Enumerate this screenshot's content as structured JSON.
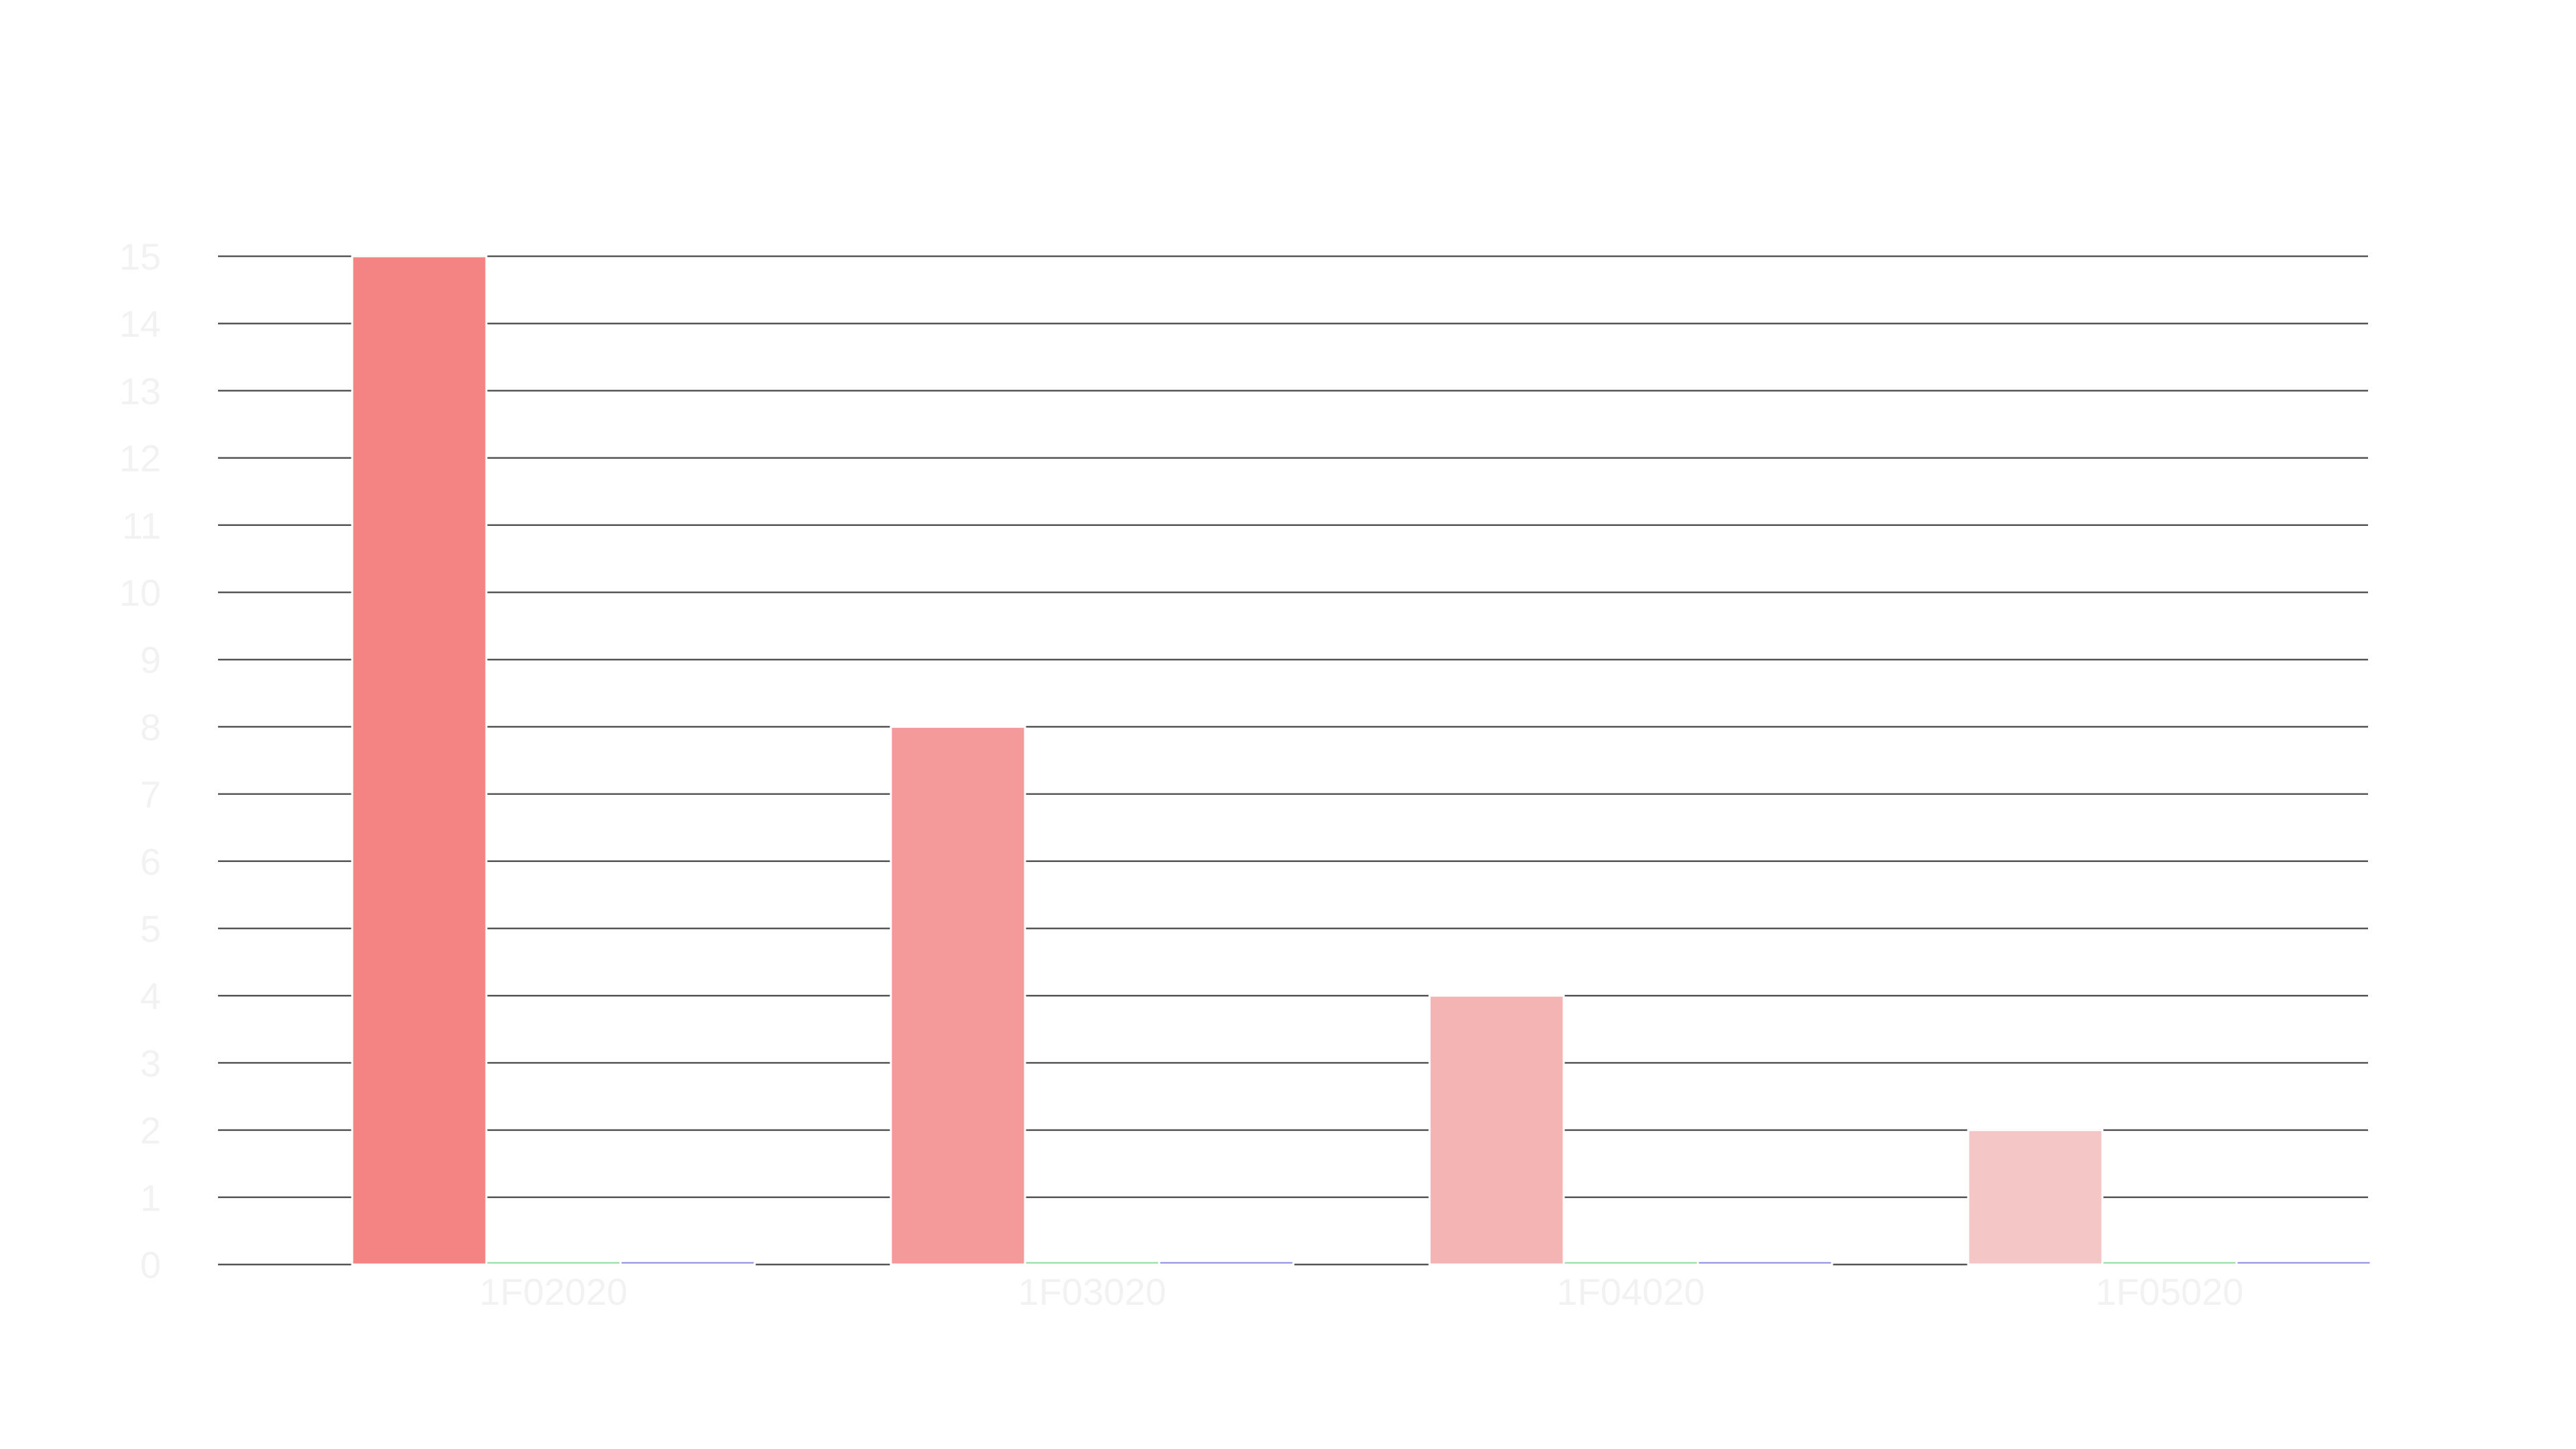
{
  "chart_data": {
    "type": "bar",
    "categories": [
      "1F02020",
      "1F03020",
      "1F04020",
      "1F05020"
    ],
    "series": [
      {
        "values": [
          15,
          8,
          4,
          2
        ],
        "colors": [
          "#f48383",
          "#f59a9a",
          "#f5b4b4",
          "#f5c6c6"
        ]
      },
      {
        "values": [
          0.05,
          0.05,
          0.05,
          0.05
        ],
        "colors": [
          "#8fd99a",
          "#8fd99a",
          "#8fd99a",
          "#8fd99a"
        ]
      },
      {
        "values": [
          0.05,
          0.05,
          0.05,
          0.05
        ],
        "colors": [
          "#8888dd",
          "#8888dd",
          "#8888dd",
          "#8888dd"
        ]
      }
    ],
    "ylim": [
      0,
      15
    ],
    "yticks": [
      0,
      1,
      2,
      3,
      4,
      5,
      6,
      7,
      8,
      9,
      10,
      11,
      12,
      13,
      14,
      15
    ],
    "grid": true,
    "legend": "none"
  }
}
